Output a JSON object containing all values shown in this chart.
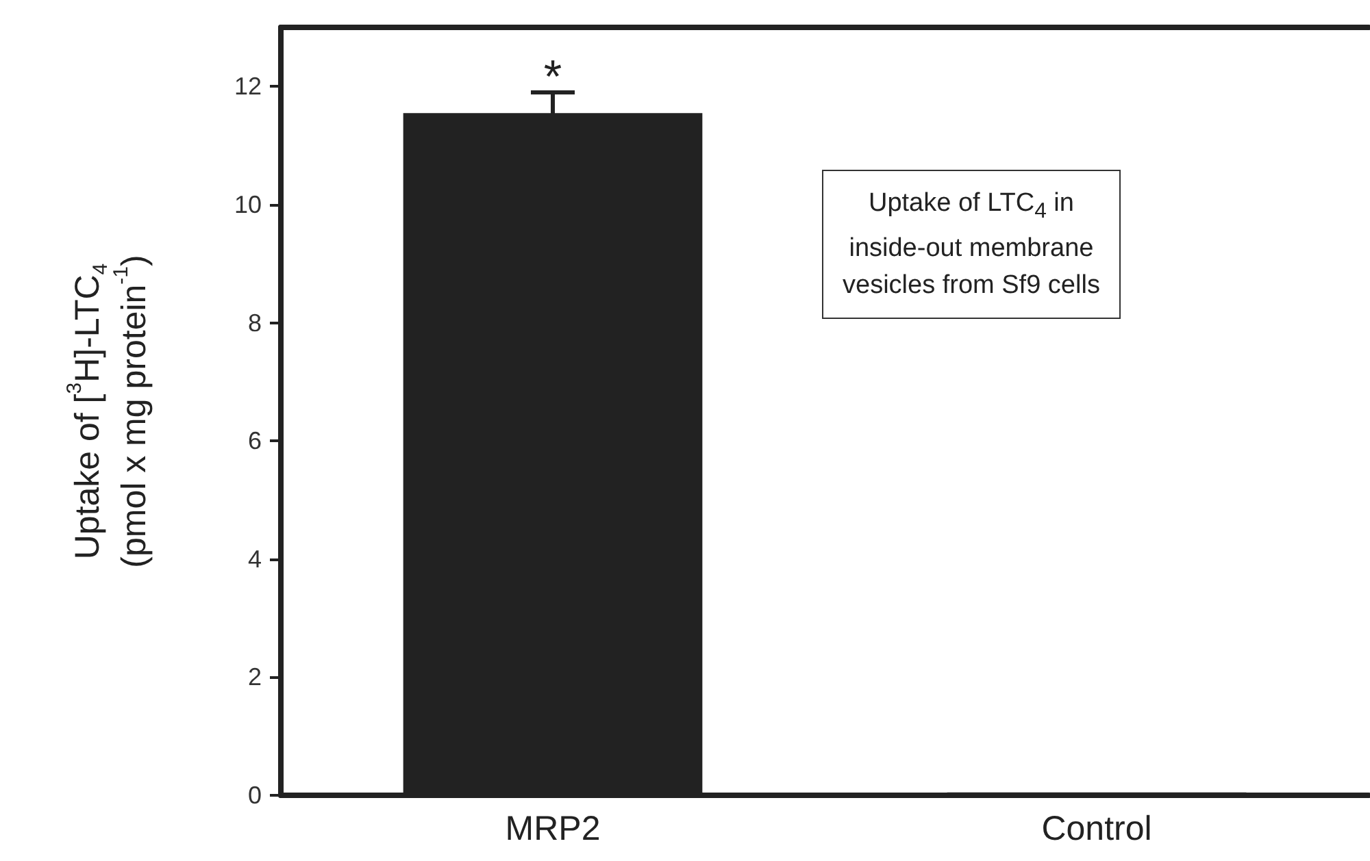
{
  "chart_data": {
    "type": "bar",
    "categories": [
      "MRP2",
      "Control"
    ],
    "values": [
      11.55,
      0.05
    ],
    "errors": [
      0.35,
      null
    ],
    "color": "#222222",
    "ylabel": "Uptake of [$^{3}$H]-LTC$_{4}$\n(pmol x mg protein$^{-1}$)",
    "ylim": [
      0,
      13
    ],
    "yticks": [
      0,
      2,
      4,
      6,
      8,
      10,
      12
    ],
    "annotations": [
      {
        "text": "*",
        "x": "MRP2",
        "y": 11.9
      },
      "Uptake of LTC$_{4}$ in\ninside-out membrane\nvesicles from Sf9 cells"
    ]
  }
}
